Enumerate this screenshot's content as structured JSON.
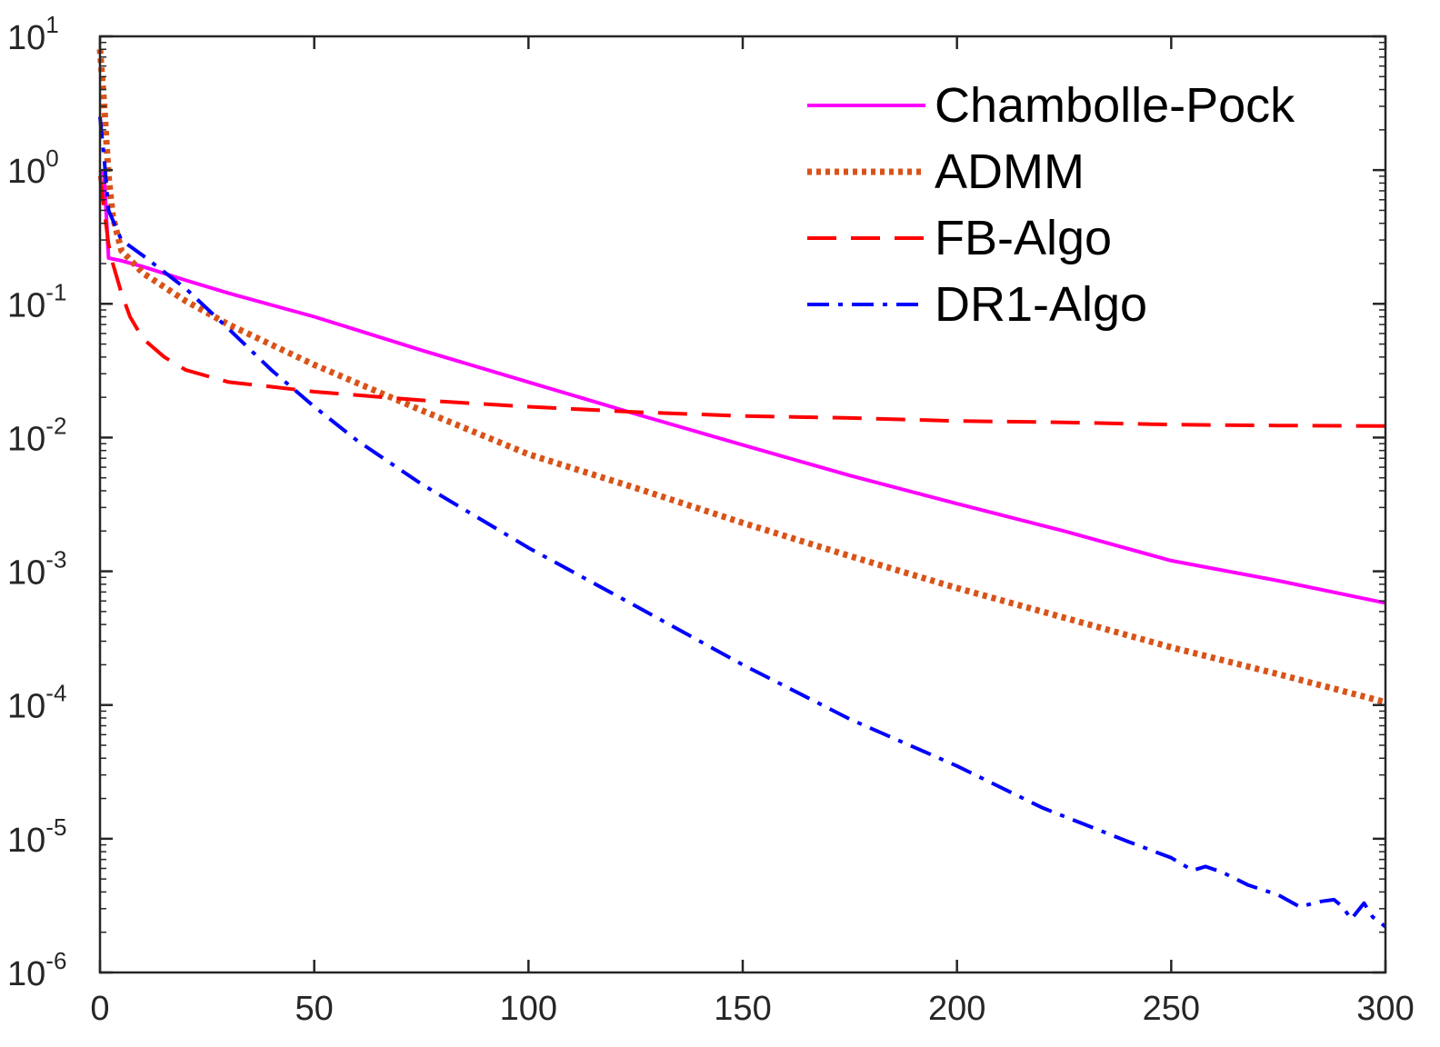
{
  "chart_data": {
    "type": "line",
    "title": "",
    "xlabel": "",
    "ylabel": "",
    "xlim": [
      0,
      300
    ],
    "ylim_log10": [
      -6,
      1
    ],
    "yscale": "log",
    "grid": false,
    "legend_position": "top-right",
    "x_ticks": [
      0,
      50,
      100,
      150,
      200,
      250,
      300
    ],
    "y_ticks": [
      {
        "base": "10",
        "exp": "1"
      },
      {
        "base": "10",
        "exp": "0"
      },
      {
        "base": "10",
        "exp": "-1"
      },
      {
        "base": "10",
        "exp": "-2"
      },
      {
        "base": "10",
        "exp": "-3"
      },
      {
        "base": "10",
        "exp": "-4"
      },
      {
        "base": "10",
        "exp": "-5"
      },
      {
        "base": "10",
        "exp": "-6"
      }
    ],
    "series": [
      {
        "name": "Chambolle-Pock",
        "color": "#ff00ff",
        "style": "solid",
        "x": [
          0,
          1,
          2,
          5,
          10,
          20,
          30,
          50,
          75,
          100,
          125,
          150,
          175,
          200,
          225,
          250,
          275,
          300
        ],
        "y": [
          1.0,
          0.9,
          0.22,
          0.21,
          0.19,
          0.15,
          0.12,
          0.08,
          0.045,
          0.026,
          0.015,
          0.0088,
          0.0052,
          0.0032,
          0.002,
          0.0012,
          0.00085,
          0.00058
        ]
      },
      {
        "name": "ADMM",
        "color": "#d95319",
        "style": "dotted",
        "x": [
          0,
          1,
          2,
          3,
          5,
          10,
          20,
          30,
          50,
          75,
          100,
          125,
          150,
          175,
          200,
          225,
          250,
          275,
          300
        ],
        "y": [
          8.0,
          3.0,
          0.9,
          0.45,
          0.25,
          0.17,
          0.105,
          0.07,
          0.035,
          0.016,
          0.0075,
          0.0042,
          0.0023,
          0.0013,
          0.00075,
          0.00045,
          0.00027,
          0.00017,
          0.000105
        ]
      },
      {
        "name": "FB-Algo",
        "color": "#ff0000",
        "style": "dashed",
        "x": [
          0,
          1,
          2,
          3,
          5,
          7,
          10,
          15,
          20,
          30,
          40,
          50,
          75,
          100,
          125,
          150,
          175,
          200,
          225,
          250,
          275,
          300
        ],
        "y": [
          0.9,
          0.5,
          0.28,
          0.2,
          0.12,
          0.08,
          0.055,
          0.04,
          0.032,
          0.026,
          0.024,
          0.022,
          0.019,
          0.017,
          0.0155,
          0.0145,
          0.014,
          0.0133,
          0.013,
          0.0125,
          0.0123,
          0.0122
        ]
      },
      {
        "name": "DR1-Algo",
        "color": "#0000ff",
        "style": "dashdot",
        "x": [
          0,
          1,
          2,
          5,
          10,
          20,
          30,
          40,
          50,
          60,
          75,
          100,
          125,
          150,
          175,
          200,
          220,
          240,
          250,
          255,
          258,
          262,
          268,
          275,
          280,
          285,
          288,
          290,
          292,
          295,
          297,
          300
        ],
        "y": [
          2.5,
          1.2,
          0.5,
          0.3,
          0.23,
          0.13,
          0.065,
          0.032,
          0.017,
          0.0095,
          0.0045,
          0.0015,
          0.00055,
          0.0002,
          7.85e-05,
          3.5e-05,
          1.7e-05,
          9.5e-06,
          7.2e-06,
          5.8e-06,
          6.2e-06,
          5.6e-06,
          4.5e-06,
          3.8e-06,
          3.1e-06,
          3.4e-06,
          3.5e-06,
          3.1e-06,
          2.5e-06,
          3.3e-06,
          2.6e-06,
          2.2e-06
        ]
      }
    ]
  }
}
